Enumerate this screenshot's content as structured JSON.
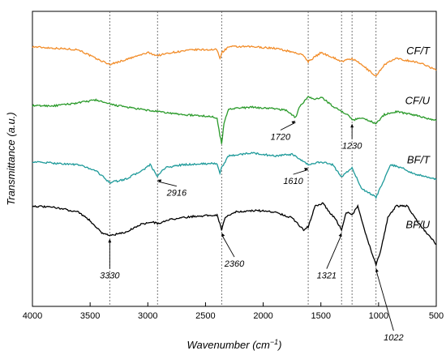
{
  "chart_data": {
    "type": "line",
    "xlabel": "Wavenumber (cm",
    "xlabel_sup": "−1",
    "xlabel_end": ")",
    "ylabel": "Transmittance (a.u.)",
    "xlim": [
      4000,
      500
    ],
    "x_reversed": true,
    "x_ticks": [
      "4000",
      "3500",
      "3000",
      "2500",
      "2000",
      "1500",
      "1000",
      "500"
    ],
    "y_ticks_shown": false,
    "grid": false,
    "reference_lines": [
      3330,
      2916,
      2360,
      1610,
      1321,
      1230,
      1022
    ],
    "series": [
      {
        "name": "CF/T",
        "color": "#f28c28",
        "offset": 0.88,
        "points": [
          [
            4000,
            0.0
          ],
          [
            3800,
            -0.005
          ],
          [
            3600,
            -0.01
          ],
          [
            3450,
            -0.04
          ],
          [
            3330,
            -0.06
          ],
          [
            3200,
            -0.045
          ],
          [
            3000,
            -0.02
          ],
          [
            2916,
            -0.03
          ],
          [
            2800,
            -0.02
          ],
          [
            2600,
            -0.01
          ],
          [
            2400,
            -0.01
          ],
          [
            2375,
            -0.04
          ],
          [
            2360,
            -0.02
          ],
          [
            2300,
            0.0
          ],
          [
            2100,
            0.0
          ],
          [
            1900,
            -0.005
          ],
          [
            1720,
            -0.02
          ],
          [
            1650,
            -0.03
          ],
          [
            1610,
            -0.05
          ],
          [
            1500,
            -0.02
          ],
          [
            1400,
            -0.035
          ],
          [
            1321,
            -0.05
          ],
          [
            1230,
            -0.04
          ],
          [
            1150,
            -0.06
          ],
          [
            1022,
            -0.1
          ],
          [
            950,
            -0.06
          ],
          [
            850,
            -0.04
          ],
          [
            700,
            -0.05
          ],
          [
            600,
            -0.06
          ],
          [
            500,
            -0.08
          ]
        ]
      },
      {
        "name": "CF/U",
        "color": "#2a9a2a",
        "offset": 0.68,
        "points": [
          [
            4000,
            0.0
          ],
          [
            3800,
            0.0
          ],
          [
            3600,
            0.01
          ],
          [
            3450,
            0.02
          ],
          [
            3330,
            0.005
          ],
          [
            3100,
            -0.01
          ],
          [
            2916,
            -0.02
          ],
          [
            2700,
            -0.03
          ],
          [
            2500,
            -0.035
          ],
          [
            2400,
            -0.04
          ],
          [
            2375,
            -0.1
          ],
          [
            2360,
            -0.13
          ],
          [
            2340,
            -0.06
          ],
          [
            2300,
            -0.01
          ],
          [
            2100,
            -0.005
          ],
          [
            1900,
            -0.01
          ],
          [
            1800,
            -0.015
          ],
          [
            1720,
            -0.04
          ],
          [
            1680,
            0.0
          ],
          [
            1610,
            0.03
          ],
          [
            1550,
            0.02
          ],
          [
            1500,
            0.03
          ],
          [
            1400,
            0.0
          ],
          [
            1321,
            -0.02
          ],
          [
            1260,
            -0.03
          ],
          [
            1230,
            -0.05
          ],
          [
            1150,
            -0.04
          ],
          [
            1022,
            -0.06
          ],
          [
            950,
            -0.03
          ],
          [
            850,
            -0.02
          ],
          [
            700,
            -0.03
          ],
          [
            600,
            -0.04
          ],
          [
            500,
            -0.05
          ]
        ]
      },
      {
        "name": "BF/T",
        "color": "#1e9a9a",
        "offset": 0.49,
        "points": [
          [
            4000,
            0.0
          ],
          [
            3800,
            -0.005
          ],
          [
            3600,
            -0.01
          ],
          [
            3450,
            -0.03
          ],
          [
            3330,
            -0.07
          ],
          [
            3200,
            -0.06
          ],
          [
            3050,
            -0.03
          ],
          [
            2980,
            -0.01
          ],
          [
            2916,
            -0.05
          ],
          [
            2850,
            -0.02
          ],
          [
            2700,
            -0.01
          ],
          [
            2400,
            -0.005
          ],
          [
            2375,
            -0.04
          ],
          [
            2360,
            -0.02
          ],
          [
            2300,
            0.02
          ],
          [
            2100,
            0.03
          ],
          [
            1900,
            0.02
          ],
          [
            1750,
            0.025
          ],
          [
            1610,
            -0.01
          ],
          [
            1500,
            0.0
          ],
          [
            1400,
            -0.01
          ],
          [
            1321,
            -0.05
          ],
          [
            1260,
            -0.03
          ],
          [
            1230,
            -0.02
          ],
          [
            1150,
            -0.09
          ],
          [
            1022,
            -0.12
          ],
          [
            950,
            -0.06
          ],
          [
            900,
            -0.01
          ],
          [
            800,
            -0.02
          ],
          [
            700,
            -0.04
          ],
          [
            600,
            -0.05
          ],
          [
            500,
            -0.06
          ]
        ]
      },
      {
        "name": "BF/U",
        "color": "#000000",
        "offset": 0.34,
        "points": [
          [
            4000,
            0.0
          ],
          [
            3800,
            -0.005
          ],
          [
            3600,
            -0.02
          ],
          [
            3500,
            -0.05
          ],
          [
            3400,
            -0.09
          ],
          [
            3330,
            -0.1
          ],
          [
            3200,
            -0.09
          ],
          [
            3050,
            -0.06
          ],
          [
            2950,
            -0.055
          ],
          [
            2916,
            -0.06
          ],
          [
            2800,
            -0.045
          ],
          [
            2600,
            -0.035
          ],
          [
            2400,
            -0.03
          ],
          [
            2375,
            -0.06
          ],
          [
            2360,
            -0.08
          ],
          [
            2330,
            -0.04
          ],
          [
            2250,
            -0.02
          ],
          [
            2050,
            -0.015
          ],
          [
            1900,
            -0.02
          ],
          [
            1750,
            -0.04
          ],
          [
            1650,
            -0.08
          ],
          [
            1610,
            -0.07
          ],
          [
            1550,
            0.0
          ],
          [
            1480,
            0.01
          ],
          [
            1430,
            -0.02
          ],
          [
            1380,
            -0.04
          ],
          [
            1321,
            -0.08
          ],
          [
            1280,
            -0.02
          ],
          [
            1230,
            -0.03
          ],
          [
            1180,
            0.0
          ],
          [
            1100,
            -0.11
          ],
          [
            1022,
            -0.2
          ],
          [
            980,
            -0.15
          ],
          [
            920,
            -0.04
          ],
          [
            850,
            0.0
          ],
          [
            750,
            0.0
          ],
          [
            650,
            -0.06
          ],
          [
            500,
            -0.13
          ]
        ]
      }
    ],
    "annotations": [
      {
        "text": "3330",
        "x": 3330,
        "tx": 3330,
        "ty_offset": -0.14
      },
      {
        "text": "2916",
        "x": 2916,
        "tx": 2750,
        "ty_offset": -0.06
      },
      {
        "text": "2360",
        "x": 2360,
        "tx": 2250,
        "ty_offset": -0.12
      },
      {
        "text": "1720",
        "x": 1720,
        "tx": 1850,
        "ty_offset": -0.07
      },
      {
        "text": "1610",
        "x": 1610,
        "tx": 1740,
        "ty_offset": -0.06
      },
      {
        "text": "1321",
        "x": 1321,
        "tx": 1450,
        "ty_offset": -0.16
      },
      {
        "text": "1230",
        "x": 1230,
        "tx": 1230,
        "ty_offset": -0.09
      },
      {
        "text": "1022",
        "x": 1022,
        "tx": 870,
        "ty_offset": -0.25
      }
    ]
  }
}
